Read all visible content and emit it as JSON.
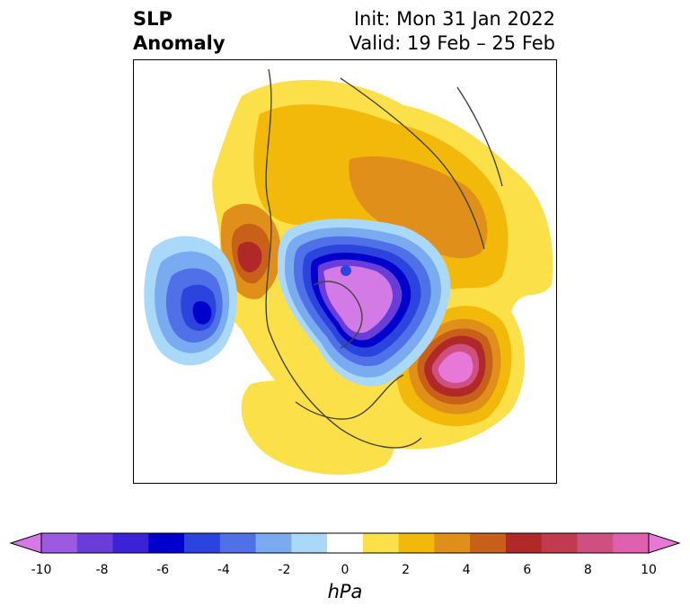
{
  "title": {
    "left_line1": "SLP",
    "left_line2": "Anomaly",
    "right_line1": "Init: Mon 31 Jan 2022",
    "right_line2": "Valid: 19 Feb – 25 Feb"
  },
  "colorbar": {
    "unit": "hPa",
    "ticks": [
      "-10",
      "-8",
      "-6",
      "-4",
      "-2",
      "0",
      "2",
      "4",
      "6",
      "8",
      "10"
    ],
    "colors": [
      "#d47ae6",
      "#9b5ae0",
      "#6a3ddb",
      "#3b22d6",
      "#0000cc",
      "#2a44dd",
      "#5070e8",
      "#7aaaf0",
      "#aad8f8",
      "#ffffff",
      "#fce04a",
      "#f2b90a",
      "#e0901a",
      "#c8601a",
      "#b02828",
      "#c03a50",
      "#cf5080",
      "#e060b0",
      "#e878d8"
    ],
    "extend": "both"
  },
  "map": {
    "projection": "north-polar-stereographic",
    "features": [
      "positive-anomaly-north-atlantic",
      "negative-anomaly-arctic",
      "negative-anomaly-north-pacific",
      "positive-anomaly-alaska"
    ]
  }
}
